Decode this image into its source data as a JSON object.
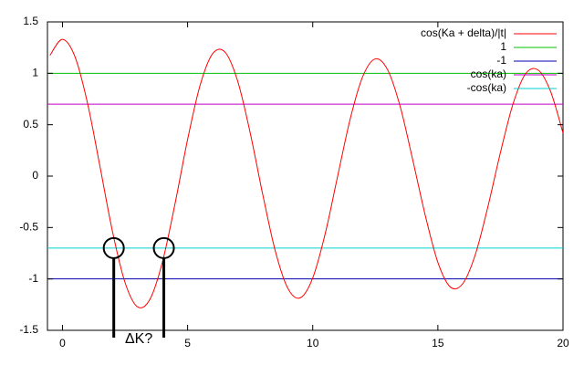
{
  "chart_data": {
    "type": "line",
    "x": [
      -0.5,
      0,
      0.5,
      1,
      1.5,
      2,
      2.5,
      3,
      3.5,
      4,
      4.5,
      5,
      5.5,
      6,
      6.5,
      7,
      7.5,
      8,
      8.5,
      9,
      9.5,
      10,
      10.5,
      11,
      11.5,
      12,
      12.5,
      13,
      13.5,
      14,
      14.5,
      15,
      15.5,
      16,
      16.5,
      17,
      17.5,
      18,
      18.5,
      19,
      19.5,
      20
    ],
    "series": [
      {
        "name": "cos(Ka + delta)/|t|",
        "color": "#ff0000",
        "values": [
          1.174,
          1.33,
          1.161,
          0.71,
          0.092,
          -0.541,
          -1.035,
          -1.272,
          -1.196,
          -0.83,
          -0.266,
          0.356,
          0.884,
          1.191,
          1.204,
          0.924,
          0.422,
          -0.176,
          -0.724,
          -1.089,
          -1.184,
          -0.99,
          -0.558,
          0.005,
          0.559,
          0.97,
          1.14,
          1.03,
          0.671,
          0.153,
          -0.386,
          -0.839,
          -1.079,
          -1.044,
          -0.76,
          -0.296,
          0.23,
          0.7,
          0.994,
          1.033,
          0.826,
          0.42
        ]
      }
    ],
    "hlines": [
      {
        "name": "1",
        "color": "#00c000",
        "value": 1
      },
      {
        "name": "-1",
        "color": "#0000b0",
        "value": -1
      },
      {
        "name": "cos(ka)",
        "color": "#c000c0",
        "value": 0.7
      },
      {
        "name": "-cos(ka)",
        "color": "#00d0d0",
        "value": -0.7
      }
    ],
    "annotation": {
      "text": "ΔK?",
      "x": [
        2.05,
        4.05
      ],
      "y": -0.7
    },
    "xlim": [
      -0.6,
      20
    ],
    "xticks": [
      0,
      5,
      10,
      15,
      20
    ],
    "ylim": [
      -1.5,
      1.5
    ],
    "yticks": [
      -1.5,
      -1,
      -0.5,
      0,
      0.5,
      1,
      1.5
    ],
    "legend": "top-right"
  }
}
